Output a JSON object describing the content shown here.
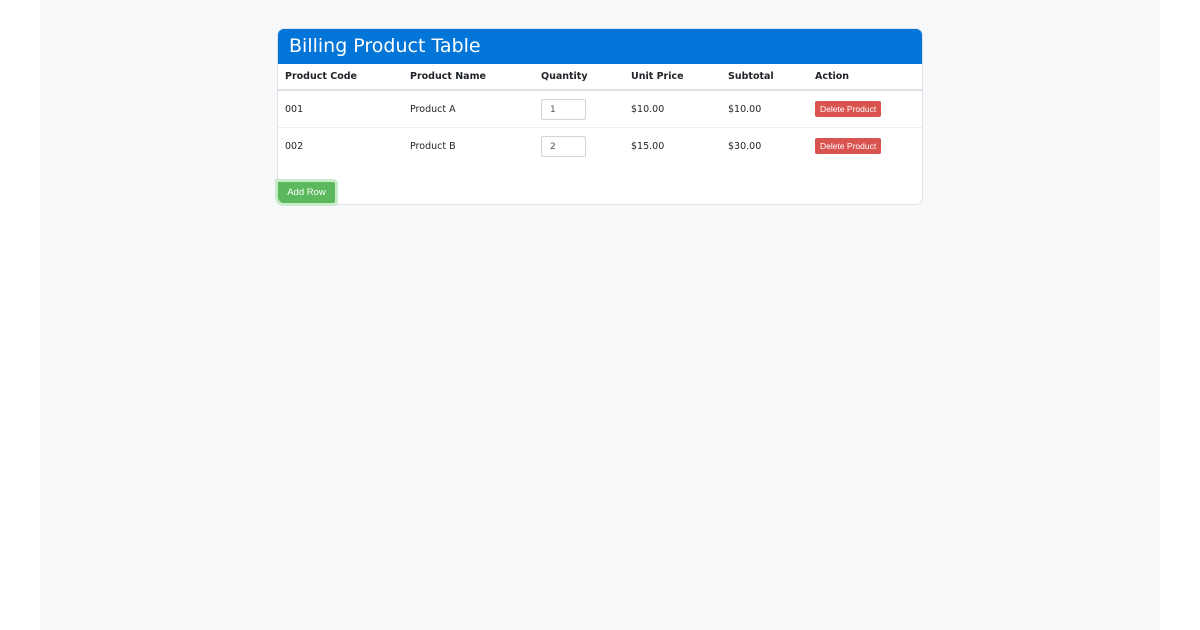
{
  "header": {
    "title": "Billing Product Table"
  },
  "table": {
    "columns": [
      "Product Code",
      "Product Name",
      "Quantity",
      "Unit Price",
      "Subtotal",
      "Action"
    ],
    "rows": [
      [
        "001",
        "Product A",
        "1",
        "$10.00",
        "$10.00",
        "Delete Product"
      ],
      [
        "002",
        "Product B",
        "2",
        "$15.00",
        "$30.00",
        "Delete Product"
      ]
    ]
  },
  "buttons": {
    "add_row": "Add Row"
  }
}
